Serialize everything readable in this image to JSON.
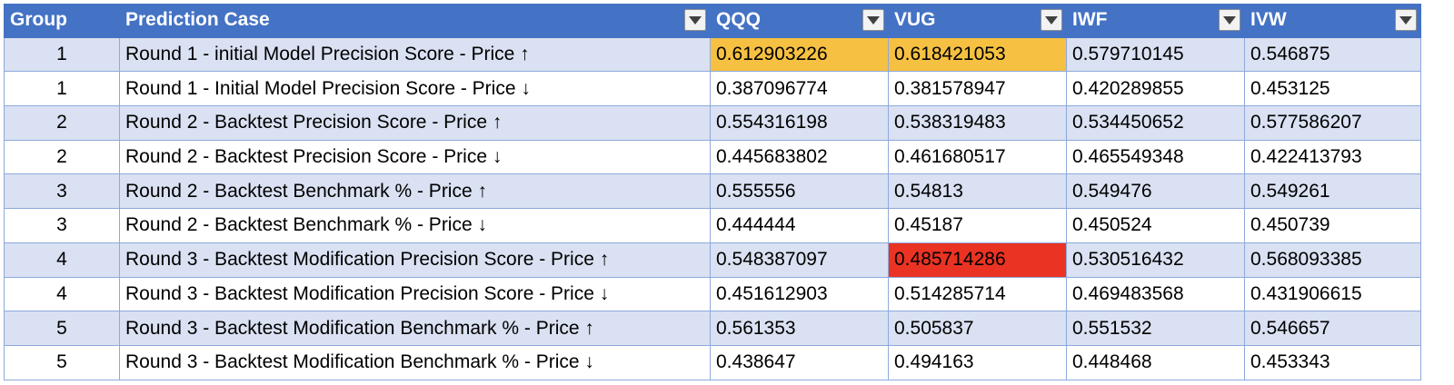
{
  "headers": [
    "Group",
    "Prediction Case",
    "QQQ",
    "VUG",
    "IWF",
    "IVW"
  ],
  "filter_icon": "chevron-down-icon",
  "colors": {
    "header": "#4472c4",
    "band": "#d9e1f2",
    "highlight_orange": "#f6c142",
    "highlight_red": "#ea3323"
  },
  "rows": [
    {
      "group": "1",
      "case": "Round 1 - initial Model Precision Score - Price ↑",
      "qqq": "0.612903226",
      "vug": "0.618421053",
      "iwf": "0.579710145",
      "ivw": "0.546875"
    },
    {
      "group": "1",
      "case": "Round 1 - Initial Model Precision Score - Price ↓",
      "qqq": "0.387096774",
      "vug": "0.381578947",
      "iwf": "0.420289855",
      "ivw": "0.453125"
    },
    {
      "group": "2",
      "case": "Round 2 - Backtest Precision Score - Price ↑",
      "qqq": "0.554316198",
      "vug": "0.538319483",
      "iwf": "0.534450652",
      "ivw": "0.577586207"
    },
    {
      "group": "2",
      "case": "Round 2 - Backtest Precision Score - Price ↓",
      "qqq": "0.445683802",
      "vug": "0.461680517",
      "iwf": "0.465549348",
      "ivw": "0.422413793"
    },
    {
      "group": "3",
      "case": "Round 2 - Backtest Benchmark % - Price ↑",
      "qqq": "0.555556",
      "vug": "0.54813",
      "iwf": "0.549476",
      "ivw": "0.549261"
    },
    {
      "group": "3",
      "case": "Round 2 - Backtest Benchmark % - Price ↓",
      "qqq": "0.444444",
      "vug": "0.45187",
      "iwf": "0.450524",
      "ivw": "0.450739"
    },
    {
      "group": "4",
      "case": "Round 3 - Backtest Modification Precision Score - Price ↑",
      "qqq": "0.548387097",
      "vug": "0.485714286",
      "iwf": "0.530516432",
      "ivw": "0.568093385"
    },
    {
      "group": "4",
      "case": "Round 3 - Backtest Modification Precision Score - Price ↓",
      "qqq": "0.451612903",
      "vug": "0.514285714",
      "iwf": "0.469483568",
      "ivw": "0.431906615"
    },
    {
      "group": "5",
      "case": "Round 3 - Backtest Modification Benchmark % - Price ↑",
      "qqq": "0.561353",
      "vug": "0.505837",
      "iwf": "0.551532",
      "ivw": "0.546657"
    },
    {
      "group": "5",
      "case": "Round 3 - Backtest Modification Benchmark % - Price ↓",
      "qqq": "0.438647",
      "vug": "0.494163",
      "iwf": "0.448468",
      "ivw": "0.453343"
    }
  ]
}
